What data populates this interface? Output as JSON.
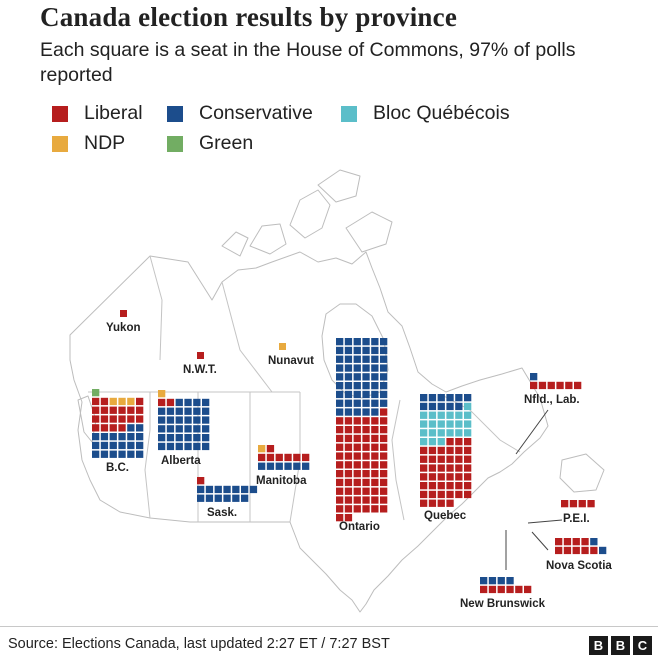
{
  "title": "Canada election results by province",
  "subtitle": "Each square is a seat in the House of Commons, 97% of polls reported",
  "legend": [
    {
      "label": "Liberal",
      "color": "#b61e1e"
    },
    {
      "label": "Conservative",
      "color": "#1c4d8c"
    },
    {
      "label": "Bloc Québécois",
      "color": "#5bbec9"
    },
    {
      "label": "NDP",
      "color": "#e8aa3f"
    },
    {
      "label": "Green",
      "color": "#72ad63"
    }
  ],
  "colors": {
    "Liberal": "#b61e1e",
    "Conservative": "#1c4d8c",
    "Bloc Québécois": "#5bbec9",
    "NDP": "#e8aa3f",
    "Green": "#72ad63"
  },
  "chart_data": {
    "type": "waffle",
    "title": "Canada election results by province",
    "unit": "Each square is a seat in the House of Commons",
    "polls_reported": "97%",
    "provinces": [
      {
        "name": "Yukon",
        "seats": {
          "Liberal": 1
        }
      },
      {
        "name": "N.W.T.",
        "seats": {
          "Liberal": 1
        }
      },
      {
        "name": "Nunavut",
        "seats": {
          "NDP": 1
        }
      },
      {
        "name": "B.C.",
        "seats": {
          "Green": 1,
          "Liberal": 19,
          "NDP": 3,
          "Conservative": 20
        }
      },
      {
        "name": "Alberta",
        "seats": {
          "NDP": 1,
          "Liberal": 2,
          "Conservative": 34
        }
      },
      {
        "name": "Sask.",
        "seats": {
          "Liberal": 1,
          "Conservative": 13
        }
      },
      {
        "name": "Manitoba",
        "seats": {
          "NDP": 1,
          "Liberal": 7,
          "Conservative": 6
        }
      },
      {
        "name": "Ontario",
        "seats": {
          "Liberal": 69,
          "Conservative": 53
        }
      },
      {
        "name": "Quebec",
        "seats": {
          "Liberal": 43,
          "Bloc Québécois": 22,
          "Conservative": 11
        }
      },
      {
        "name": "Nfld., Lab.",
        "seats": {
          "Liberal": 6,
          "Conservative": 1
        }
      },
      {
        "name": "P.E.I.",
        "seats": {
          "Liberal": 4
        }
      },
      {
        "name": "Nova Scotia",
        "seats": {
          "Liberal": 9,
          "Conservative": 2
        }
      },
      {
        "name": "New Brunswick",
        "seats": {
          "Liberal": 6,
          "Conservative": 4
        }
      }
    ]
  },
  "footer": {
    "source": "Source: Elections Canada, last updated  2:27 ET / 7:27 BST",
    "logo_letters": [
      "B",
      "B",
      "C"
    ]
  }
}
